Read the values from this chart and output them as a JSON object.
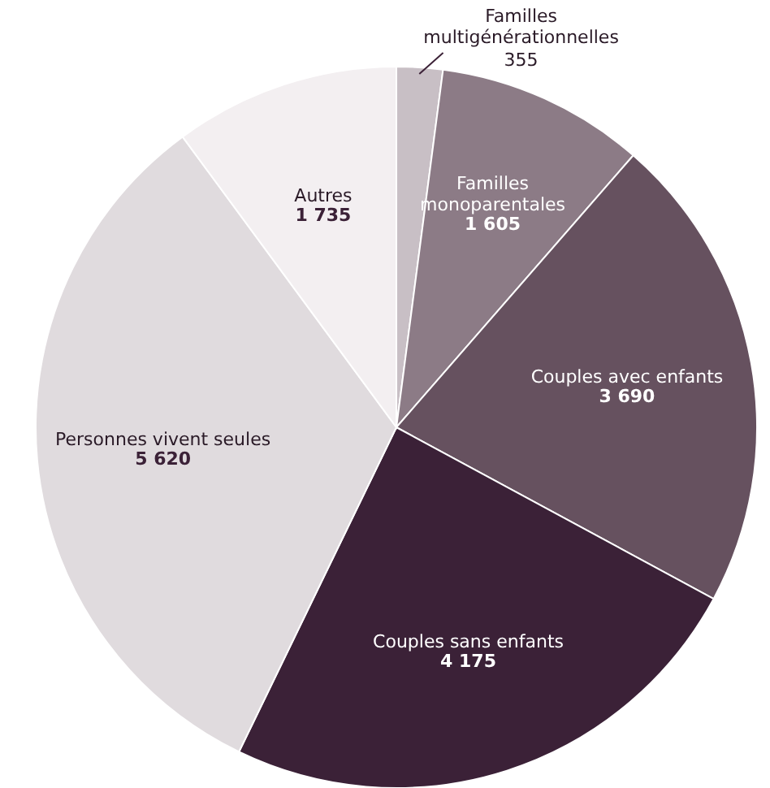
{
  "chart_data": {
    "type": "pie",
    "categories": [
      "Familles multigénérationnelles",
      "Familles monoparentales",
      "Couples avec enfants",
      "Couples sans enfants",
      "Personnes vivent seules",
      "Autres"
    ],
    "values": [
      355,
      1605,
      3690,
      4175,
      5620,
      1735
    ],
    "value_labels": [
      "355",
      "1 605",
      "3 690",
      "4 175",
      "5 620",
      "1 735"
    ],
    "colors": [
      "#c8bfc5",
      "#8c7b86",
      "#66515f",
      "#3b2137",
      "#e0dbde",
      "#f3eff1"
    ]
  }
}
